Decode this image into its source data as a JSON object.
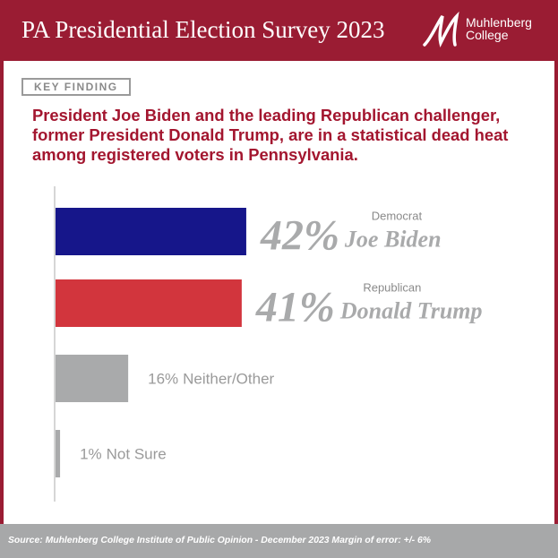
{
  "header": {
    "title": "PA Presidential Election Survey 2023",
    "logo_name": "Muhlenberg",
    "logo_sub": "College"
  },
  "key_finding": {
    "label": "KEY FINDING",
    "text": "President Joe Biden and the leading Republican challenger, former President Donald Trump, are in a statistical dead heat among registered voters in Pennsylvania."
  },
  "chart_data": {
    "type": "bar",
    "orientation": "horizontal",
    "categories": [
      "Joe Biden",
      "Donald Trump",
      "Neither/Other",
      "Not Sure"
    ],
    "parties": [
      "Democrat",
      "Republican",
      null,
      null
    ],
    "values": [
      42,
      41,
      16,
      1
    ],
    "value_labels": [
      "42%",
      "41%",
      "16%",
      "1%"
    ],
    "colors": [
      "#16168a",
      "#d2353d",
      "#a9aaab",
      "#a9aaab"
    ]
  },
  "footer": {
    "source": "Source: Muhlenberg College Institute of Public Opinion - December 2023 Margin of error: +/- 6%"
  }
}
